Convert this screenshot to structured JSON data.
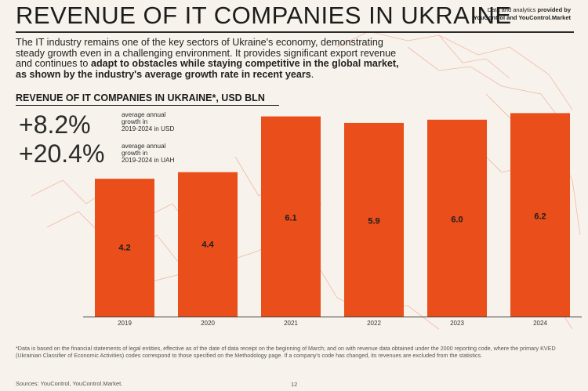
{
  "header": {
    "title": "REVENUE OF IT COMPANIES IN UKRAINE",
    "provider_prefix": "Data and analytics ",
    "provider_bold": "provided by",
    "provider_line2": "YouControl and YouControl.Market"
  },
  "intro": {
    "text_plain": "The IT industry remains one of the key sectors of Ukraine's economy, demonstrating steady growth even in a challenging environment. It provides significant export revenue and continues to ",
    "text_bold": "adapt to obstacles while staying competitive in the global market, as shown by the industry's average growth rate in recent years",
    "text_end": "."
  },
  "stats": [
    {
      "value": "+8.2%",
      "desc_l1": "average annual",
      "desc_l2": "growth in",
      "desc_l3": "2019-2024 in USD"
    },
    {
      "value": "+20.4%",
      "desc_l1": "average annual",
      "desc_l2": "growth in",
      "desc_l3": "2019-2024 in UAH"
    }
  ],
  "colors": {
    "bar": "#e94e1b",
    "text": "#1c1c1c",
    "background": "#f7f3ec"
  },
  "chart_data": {
    "type": "bar",
    "title": "REVENUE OF IT COMPANIES IN UKRAINE*, USD BLN",
    "categories": [
      "2019",
      "2020",
      "2021",
      "2022",
      "2023",
      "2024"
    ],
    "values": [
      4.2,
      4.4,
      6.1,
      5.9,
      6.0,
      6.2
    ],
    "value_labels": [
      "4.2",
      "4.4",
      "6.1",
      "5.9",
      "6.0",
      "6.2"
    ],
    "xlabel": "",
    "ylabel": "USD BLN",
    "ylim": [
      0,
      6.4
    ],
    "grid": false,
    "legend": "none"
  },
  "footnote": "*Data is based on the financial statements of legal entities, effective as of the date of data receipt on the beginning of March; and on with revenue data obtained under the 2000 reporting code, where the primary KVED (Ukrainian Classifier of Economic Activities) codes correspond to those specified on the Methodology page. If a company's code has changed, its revenues are excluded from the statistics.",
  "sources": "Sources: YouControl, YouControl.Market.",
  "page_number": "12"
}
